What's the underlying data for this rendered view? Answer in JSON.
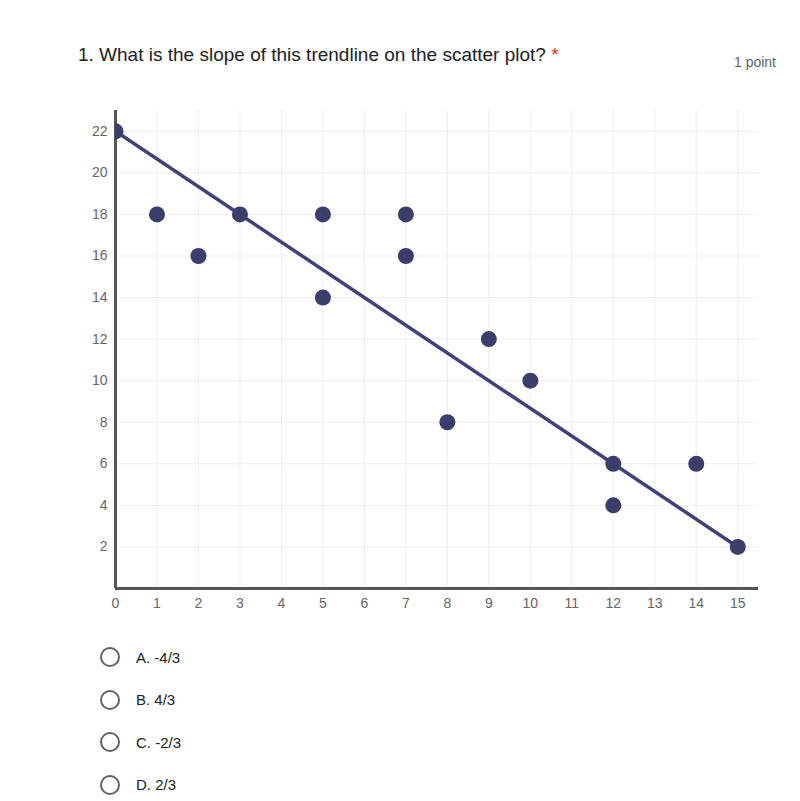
{
  "question": "1. What is the slope of this trendline on the scatter plot?",
  "required_mark": "*",
  "points": "1 point",
  "options": [
    "A. -4/3",
    "B. 4/3",
    "C. -2/3",
    "D. 2/3"
  ],
  "chart_data": {
    "type": "scatter",
    "x": [
      0,
      1,
      2,
      3,
      5,
      5,
      7,
      7,
      8,
      9,
      10,
      12,
      12,
      14,
      15
    ],
    "values": [
      22,
      18,
      16,
      18,
      18,
      14,
      18,
      16,
      8,
      12,
      10,
      6,
      4,
      6,
      2
    ],
    "color": "#3b3d6b",
    "trendline": {
      "x": [
        0,
        15
      ],
      "values": [
        22,
        2
      ],
      "color": "#3f4277"
    },
    "xlim": [
      0,
      15.5
    ],
    "ylim": [
      0,
      23
    ],
    "xticks": [
      0,
      1,
      2,
      3,
      4,
      5,
      6,
      7,
      8,
      9,
      10,
      11,
      12,
      13,
      14,
      15
    ],
    "yticks": [
      2,
      4,
      6,
      8,
      10,
      12,
      14,
      16,
      18,
      20,
      22
    ],
    "grid": true
  }
}
